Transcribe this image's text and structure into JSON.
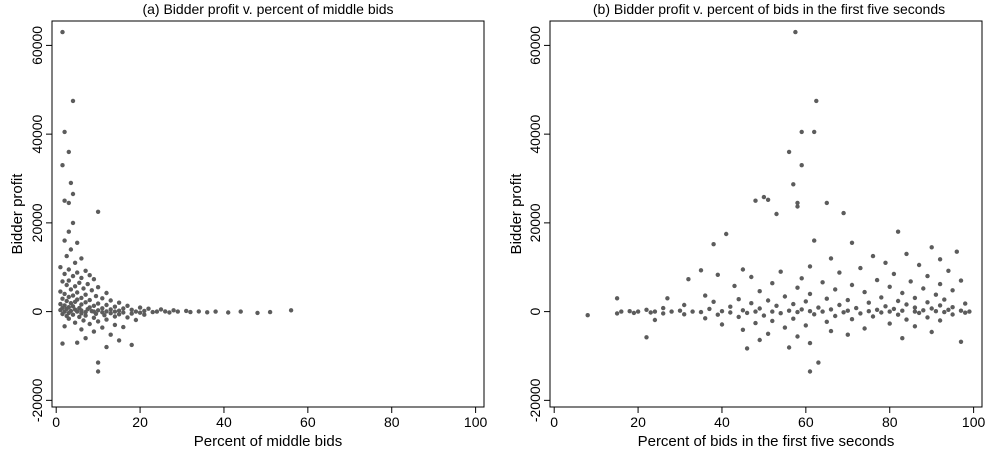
{
  "chart_data": [
    {
      "type": "scatter",
      "title": "(a) Bidder profit v. percent of middle bids",
      "xlabel": "Percent of middle bids",
      "ylabel": "Bidder profit",
      "xlim": [
        -1,
        102
      ],
      "ylim": [
        -21500,
        65500
      ],
      "xticks": [
        "0",
        "20",
        "40",
        "60",
        "80",
        "100"
      ],
      "yticks": [
        "-20000",
        "0",
        "20000",
        "40000",
        "60000"
      ],
      "grid": false,
      "marker_color": "#5c5c5c",
      "points": [
        [
          1.5,
          63000
        ],
        [
          4,
          47500
        ],
        [
          2,
          40500
        ],
        [
          3,
          36000
        ],
        [
          1.5,
          33000
        ],
        [
          3.5,
          29000
        ],
        [
          4,
          26500
        ],
        [
          2,
          25000
        ],
        [
          3,
          24500
        ],
        [
          10,
          22500
        ],
        [
          4,
          20000
        ],
        [
          3,
          18000
        ],
        [
          2,
          16000
        ],
        [
          5,
          15500
        ],
        [
          3.5,
          14000
        ],
        [
          2.5,
          12500
        ],
        [
          6,
          12000
        ],
        [
          4.5,
          11000
        ],
        [
          1,
          10000
        ],
        [
          3,
          9500
        ],
        [
          7,
          9200
        ],
        [
          5,
          8800
        ],
        [
          2,
          8500
        ],
        [
          8,
          8200
        ],
        [
          4,
          8000
        ],
        [
          6,
          7600
        ],
        [
          9,
          7300
        ],
        [
          3,
          7000
        ],
        [
          1.5,
          6800
        ],
        [
          5.5,
          6500
        ],
        [
          7.5,
          6200
        ],
        [
          2.5,
          6000
        ],
        [
          4.5,
          5700
        ],
        [
          10,
          5500
        ],
        [
          6.5,
          5200
        ],
        [
          3.5,
          5000
        ],
        [
          8.5,
          4800
        ],
        [
          1,
          4500
        ],
        [
          5,
          4300
        ],
        [
          12,
          4200
        ],
        [
          2,
          4000
        ],
        [
          7,
          3800
        ],
        [
          4,
          3600
        ],
        [
          9.5,
          3500
        ],
        [
          3,
          3300
        ],
        [
          6,
          3100
        ],
        [
          11,
          3000
        ],
        [
          1.5,
          2900
        ],
        [
          5,
          2700
        ],
        [
          8,
          2600
        ],
        [
          13,
          2500
        ],
        [
          2.5,
          2400
        ],
        [
          4.5,
          2200
        ],
        [
          7,
          2100
        ],
        [
          15,
          2000
        ],
        [
          3.5,
          1900
        ],
        [
          10,
          1800
        ],
        [
          1,
          1700
        ],
        [
          6,
          1600
        ],
        [
          12,
          1500
        ],
        [
          2,
          1400
        ],
        [
          9,
          1300
        ],
        [
          17,
          1300
        ],
        [
          4,
          1200
        ],
        [
          14,
          1100
        ],
        [
          3,
          1000
        ],
        [
          8,
          950
        ],
        [
          20,
          900
        ],
        [
          1.5,
          850
        ],
        [
          5.5,
          800
        ],
        [
          11,
          750
        ],
        [
          16,
          700
        ],
        [
          22,
          650
        ],
        [
          2.5,
          600
        ],
        [
          7.5,
          550
        ],
        [
          13,
          500
        ],
        [
          25,
          500
        ],
        [
          4.5,
          450
        ],
        [
          18,
          400
        ],
        [
          1,
          350
        ],
        [
          10,
          300
        ],
        [
          28,
          300
        ],
        [
          6,
          250
        ],
        [
          15,
          200
        ],
        [
          3.5,
          150
        ],
        [
          21,
          150
        ],
        [
          31,
          150
        ],
        [
          8.5,
          100
        ],
        [
          12,
          50
        ],
        [
          26,
          50
        ],
        [
          34,
          50
        ],
        [
          2,
          0
        ],
        [
          5,
          0
        ],
        [
          9,
          0
        ],
        [
          14,
          0
        ],
        [
          19,
          0
        ],
        [
          24,
          0
        ],
        [
          29,
          0
        ],
        [
          38,
          0
        ],
        [
          44,
          0
        ],
        [
          51,
          -100
        ],
        [
          56,
          300
        ],
        [
          7,
          -100
        ],
        [
          11,
          -150
        ],
        [
          16,
          -200
        ],
        [
          23,
          -100
        ],
        [
          32,
          -100
        ],
        [
          41,
          -200
        ],
        [
          48,
          -300
        ],
        [
          36,
          -150
        ],
        [
          27,
          -200
        ],
        [
          20,
          -250
        ],
        [
          3,
          -300
        ],
        [
          13,
          -350
        ],
        [
          6,
          -400
        ],
        [
          18,
          -450
        ],
        [
          9.5,
          -500
        ],
        [
          1.5,
          -550
        ],
        [
          15,
          -600
        ],
        [
          4,
          -700
        ],
        [
          11.5,
          -800
        ],
        [
          7,
          -900
        ],
        [
          21,
          -700
        ],
        [
          2.5,
          -1000
        ],
        [
          14,
          -1100
        ],
        [
          5.5,
          -1200
        ],
        [
          9,
          -1400
        ],
        [
          17,
          -1300
        ],
        [
          3,
          -1600
        ],
        [
          12,
          -1800
        ],
        [
          6.5,
          -2000
        ],
        [
          10,
          -2200
        ],
        [
          19,
          -1900
        ],
        [
          4.5,
          -2500
        ],
        [
          8,
          -2800
        ],
        [
          14,
          -3000
        ],
        [
          2,
          -3300
        ],
        [
          11,
          -3600
        ],
        [
          6,
          -4000
        ],
        [
          16,
          -3500
        ],
        [
          9,
          -4500
        ],
        [
          13,
          -5200
        ],
        [
          7,
          -6000
        ],
        [
          15,
          -6500
        ],
        [
          5,
          -7000
        ],
        [
          1.5,
          -7200
        ],
        [
          18,
          -7500
        ],
        [
          10,
          -11500
        ],
        [
          10,
          -13500
        ],
        [
          12,
          -8000
        ]
      ]
    },
    {
      "type": "scatter",
      "title": "(b) Bidder profit v. percent of bids in the first five seconds",
      "xlabel": "Percent of bids in the first five seconds",
      "ylabel": "Bidder profit",
      "xlim": [
        -1,
        102
      ],
      "ylim": [
        -21500,
        65500
      ],
      "xticks": [
        "0",
        "20",
        "40",
        "60",
        "80",
        "100"
      ],
      "yticks": [
        "-20000",
        "0",
        "20000",
        "40000",
        "60000"
      ],
      "grid": false,
      "marker_color": "#5c5c5c",
      "points": [
        [
          57.5,
          63000
        ],
        [
          62.5,
          47500
        ],
        [
          59,
          40500
        ],
        [
          62,
          40500
        ],
        [
          56,
          36000
        ],
        [
          59,
          33000
        ],
        [
          57,
          28700
        ],
        [
          50,
          25800
        ],
        [
          51,
          25200
        ],
        [
          48,
          25000
        ],
        [
          58,
          24500
        ],
        [
          65,
          24500
        ],
        [
          53,
          22000
        ],
        [
          58,
          23700
        ],
        [
          69,
          22200
        ],
        [
          62,
          16000
        ],
        [
          41,
          17500
        ],
        [
          38,
          15200
        ],
        [
          82,
          18000
        ],
        [
          71,
          15500
        ],
        [
          90,
          14500
        ],
        [
          96,
          13500
        ],
        [
          84,
          13000
        ],
        [
          76,
          12500
        ],
        [
          66,
          12000
        ],
        [
          92,
          11800
        ],
        [
          79,
          11000
        ],
        [
          87,
          10500
        ],
        [
          61,
          10200
        ],
        [
          73,
          9800
        ],
        [
          45,
          9500
        ],
        [
          35,
          9300
        ],
        [
          94,
          9200
        ],
        [
          54,
          9000
        ],
        [
          68,
          8800
        ],
        [
          81,
          8500
        ],
        [
          39,
          8300
        ],
        [
          89,
          8000
        ],
        [
          47,
          7800
        ],
        [
          59,
          7500
        ],
        [
          32,
          7300
        ],
        [
          77,
          7100
        ],
        [
          97,
          7000
        ],
        [
          85,
          6800
        ],
        [
          64,
          6600
        ],
        [
          52,
          6400
        ],
        [
          92,
          6200
        ],
        [
          71,
          6000
        ],
        [
          43,
          5800
        ],
        [
          80,
          5600
        ],
        [
          58,
          5400
        ],
        [
          88,
          5200
        ],
        [
          67,
          5000
        ],
        [
          95,
          4800
        ],
        [
          49,
          4600
        ],
        [
          74,
          4400
        ],
        [
          83,
          4200
        ],
        [
          61,
          4000
        ],
        [
          91,
          3800
        ],
        [
          36,
          3600
        ],
        [
          55,
          3400
        ],
        [
          78,
          3200
        ],
        [
          86,
          3100
        ],
        [
          27,
          3000
        ],
        [
          15,
          3000
        ],
        [
          65,
          2900
        ],
        [
          44,
          2800
        ],
        [
          93,
          2700
        ],
        [
          70,
          2600
        ],
        [
          51,
          2500
        ],
        [
          82,
          2400
        ],
        [
          60,
          2300
        ],
        [
          38,
          2200
        ],
        [
          89,
          2100
        ],
        [
          75,
          2000
        ],
        [
          47,
          1900
        ],
        [
          98,
          1800
        ],
        [
          57,
          1700
        ],
        [
          84,
          1600
        ],
        [
          31,
          1500
        ],
        [
          68,
          1500
        ],
        [
          92,
          1400
        ],
        [
          53,
          1300
        ],
        [
          79,
          1200
        ],
        [
          42,
          1100
        ],
        [
          95,
          1000
        ],
        [
          63,
          900
        ],
        [
          86,
          900
        ],
        [
          26,
          800
        ],
        [
          72,
          800
        ],
        [
          49,
          700
        ],
        [
          90,
          700
        ],
        [
          37,
          600
        ],
        [
          81,
          600
        ],
        [
          59,
          500
        ],
        [
          66,
          500
        ],
        [
          22,
          400
        ],
        [
          77,
          400
        ],
        [
          94,
          400
        ],
        [
          45,
          300
        ],
        [
          88,
          300
        ],
        [
          30,
          200
        ],
        [
          56,
          200
        ],
        [
          70,
          200
        ],
        [
          83,
          200
        ],
        [
          97,
          200
        ],
        [
          18,
          100
        ],
        [
          40,
          100
        ],
        [
          61,
          100
        ],
        [
          75,
          100
        ],
        [
          91,
          100
        ],
        [
          16,
          0
        ],
        [
          20,
          0
        ],
        [
          24,
          0
        ],
        [
          28,
          0
        ],
        [
          33,
          0
        ],
        [
          48,
          0
        ],
        [
          52,
          0
        ],
        [
          64,
          0
        ],
        [
          80,
          0
        ],
        [
          86,
          0
        ],
        [
          99,
          0
        ],
        [
          8,
          -800
        ],
        [
          15,
          -400
        ],
        [
          19,
          -300
        ],
        [
          23,
          -200
        ],
        [
          35,
          -100
        ],
        [
          42,
          -200
        ],
        [
          58,
          -100
        ],
        [
          69,
          -150
        ],
        [
          78,
          -200
        ],
        [
          93,
          -100
        ],
        [
          26,
          -400
        ],
        [
          46,
          -300
        ],
        [
          54,
          -350
        ],
        [
          73,
          -400
        ],
        [
          87,
          -300
        ],
        [
          98,
          -250
        ],
        [
          31,
          -600
        ],
        [
          39,
          -700
        ],
        [
          62,
          -600
        ],
        [
          82,
          -700
        ],
        [
          95,
          -650
        ],
        [
          50,
          -900
        ],
        [
          67,
          -1000
        ],
        [
          44,
          -1200
        ],
        [
          76,
          -1100
        ],
        [
          89,
          -1300
        ],
        [
          36,
          -1500
        ],
        [
          57,
          -1600
        ],
        [
          71,
          -1700
        ],
        [
          84,
          -1800
        ],
        [
          24,
          -1900
        ],
        [
          52,
          -2100
        ],
        [
          92,
          -2000
        ],
        [
          65,
          -2300
        ],
        [
          48,
          -2600
        ],
        [
          80,
          -2700
        ],
        [
          40,
          -2900
        ],
        [
          60,
          -3100
        ],
        [
          86,
          -3300
        ],
        [
          55,
          -3600
        ],
        [
          74,
          -3800
        ],
        [
          45,
          -4100
        ],
        [
          66,
          -4400
        ],
        [
          90,
          -4600
        ],
        [
          51,
          -5000
        ],
        [
          22,
          -5800
        ],
        [
          70,
          -5200
        ],
        [
          58,
          -5600
        ],
        [
          83,
          -6000
        ],
        [
          49,
          -6400
        ],
        [
          97,
          -6800
        ],
        [
          61,
          -7100
        ],
        [
          46,
          -8300
        ],
        [
          56,
          -8100
        ],
        [
          63,
          -11500
        ],
        [
          61,
          -13500
        ]
      ]
    }
  ]
}
